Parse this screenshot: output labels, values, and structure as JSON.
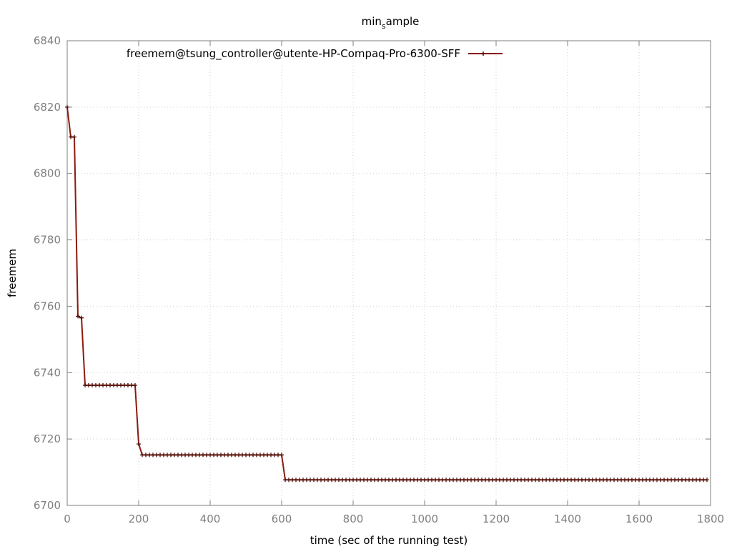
{
  "chart_data": {
    "type": "line",
    "title": {
      "main": "min",
      "subscript": "s",
      "rest": "ample"
    },
    "xlabel": "time (sec of the running test)",
    "ylabel": "freemem",
    "xlim": [
      0,
      1800
    ],
    "ylim": [
      6700,
      6840
    ],
    "xticks": [
      0,
      200,
      400,
      600,
      800,
      1000,
      1200,
      1400,
      1600,
      1800
    ],
    "yticks": [
      6700,
      6720,
      6740,
      6760,
      6780,
      6800,
      6820,
      6840
    ],
    "grid": true,
    "legend_position": "top-left",
    "colors": {
      "series": "#8b1a0e",
      "grid": "#d0d0d0",
      "axis": "#7f7f7f"
    },
    "series": [
      {
        "name": "freemem@tsung_controller@utente-HP-Compaq-Pro-6300-SFF",
        "x": [
          0,
          10,
          20,
          30,
          40,
          50,
          60,
          70,
          80,
          90,
          100,
          110,
          120,
          130,
          140,
          150,
          160,
          170,
          180,
          190,
          200,
          210,
          220,
          230,
          240,
          250,
          260,
          270,
          280,
          290,
          300,
          310,
          320,
          330,
          340,
          350,
          360,
          370,
          380,
          390,
          400,
          410,
          420,
          430,
          440,
          450,
          460,
          470,
          480,
          490,
          500,
          510,
          520,
          530,
          540,
          550,
          560,
          570,
          580,
          590,
          600,
          610,
          620,
          630,
          640,
          650,
          660,
          670,
          680,
          690,
          700,
          710,
          720,
          730,
          740,
          750,
          760,
          770,
          780,
          790,
          800,
          810,
          820,
          830,
          840,
          850,
          860,
          870,
          880,
          890,
          900,
          910,
          920,
          930,
          940,
          950,
          960,
          970,
          980,
          990,
          1000,
          1010,
          1020,
          1030,
          1040,
          1050,
          1060,
          1070,
          1080,
          1090,
          1100,
          1110,
          1120,
          1130,
          1140,
          1150,
          1160,
          1170,
          1180,
          1190,
          1200,
          1210,
          1220,
          1230,
          1240,
          1250,
          1260,
          1270,
          1280,
          1290,
          1300,
          1310,
          1320,
          1330,
          1340,
          1350,
          1360,
          1370,
          1380,
          1390,
          1400,
          1410,
          1420,
          1430,
          1440,
          1450,
          1460,
          1470,
          1480,
          1490,
          1500,
          1510,
          1520,
          1530,
          1540,
          1550,
          1560,
          1570,
          1580,
          1590,
          1600,
          1610,
          1620,
          1630,
          1640,
          1650,
          1660,
          1670,
          1680,
          1690,
          1700,
          1710,
          1720,
          1730,
          1740,
          1750,
          1760,
          1770,
          1780,
          1790
        ],
        "y": [
          6820,
          6811,
          6811,
          6757,
          6756.5,
          6736.2,
          6736.2,
          6736.2,
          6736.2,
          6736.2,
          6736.2,
          6736.2,
          6736.2,
          6736.2,
          6736.2,
          6736.2,
          6736.2,
          6736.2,
          6736.2,
          6736.2,
          6718.5,
          6715.2,
          6715.2,
          6715.2,
          6715.2,
          6715.2,
          6715.2,
          6715.2,
          6715.2,
          6715.2,
          6715.2,
          6715.2,
          6715.2,
          6715.2,
          6715.2,
          6715.2,
          6715.2,
          6715.2,
          6715.2,
          6715.2,
          6715.2,
          6715.2,
          6715.2,
          6715.2,
          6715.2,
          6715.2,
          6715.2,
          6715.2,
          6715.2,
          6715.2,
          6715.2,
          6715.2,
          6715.2,
          6715.2,
          6715.2,
          6715.2,
          6715.2,
          6715.2,
          6715.2,
          6715.2,
          6715.2,
          6707.7,
          6707.7,
          6707.7,
          6707.7,
          6707.7,
          6707.7,
          6707.7,
          6707.7,
          6707.7,
          6707.7,
          6707.7,
          6707.7,
          6707.7,
          6707.7,
          6707.7,
          6707.7,
          6707.7,
          6707.7,
          6707.7,
          6707.7,
          6707.7,
          6707.7,
          6707.7,
          6707.7,
          6707.7,
          6707.7,
          6707.7,
          6707.7,
          6707.7,
          6707.7,
          6707.7,
          6707.7,
          6707.7,
          6707.7,
          6707.7,
          6707.7,
          6707.7,
          6707.7,
          6707.7,
          6707.7,
          6707.7,
          6707.7,
          6707.7,
          6707.7,
          6707.7,
          6707.7,
          6707.7,
          6707.7,
          6707.7,
          6707.7,
          6707.7,
          6707.7,
          6707.7,
          6707.7,
          6707.7,
          6707.7,
          6707.7,
          6707.7,
          6707.7,
          6707.7,
          6707.7,
          6707.7,
          6707.7,
          6707.7,
          6707.7,
          6707.7,
          6707.7,
          6707.7,
          6707.7,
          6707.7,
          6707.7,
          6707.7,
          6707.7,
          6707.7,
          6707.7,
          6707.7,
          6707.7,
          6707.7,
          6707.7,
          6707.7,
          6707.7,
          6707.7,
          6707.7,
          6707.7,
          6707.7,
          6707.7,
          6707.7,
          6707.7,
          6707.7,
          6707.7,
          6707.7,
          6707.7,
          6707.7,
          6707.7,
          6707.7,
          6707.7,
          6707.7,
          6707.7,
          6707.7,
          6707.7,
          6707.7,
          6707.7,
          6707.7,
          6707.7,
          6707.7,
          6707.7,
          6707.7,
          6707.7,
          6707.7,
          6707.7,
          6707.7,
          6707.7,
          6707.7,
          6707.7,
          6707.7,
          6707.7,
          6707.7,
          6707.7,
          6707.7
        ]
      }
    ]
  }
}
